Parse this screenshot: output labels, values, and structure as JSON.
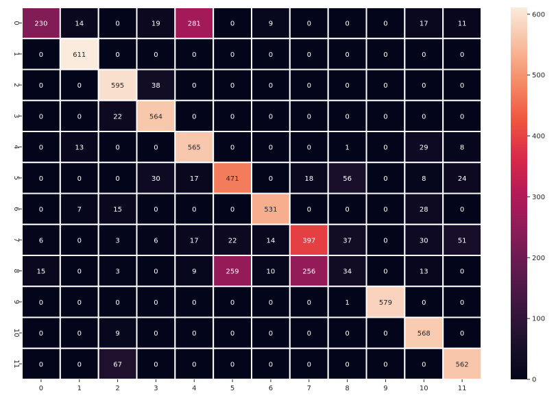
{
  "chart_data": {
    "type": "heatmap",
    "title": "",
    "xlabel": "",
    "ylabel": "",
    "x_categories": [
      "0",
      "1",
      "2",
      "3",
      "4",
      "5",
      "6",
      "7",
      "8",
      "9",
      "10",
      "11"
    ],
    "y_categories": [
      "0",
      "1",
      "2",
      "3",
      "4",
      "5",
      "6",
      "7",
      "8",
      "9",
      "10",
      "11"
    ],
    "matrix": [
      [
        230,
        14,
        0,
        19,
        281,
        0,
        9,
        0,
        0,
        0,
        17,
        11
      ],
      [
        0,
        611,
        0,
        0,
        0,
        0,
        0,
        0,
        0,
        0,
        0,
        0
      ],
      [
        0,
        0,
        595,
        38,
        0,
        0,
        0,
        0,
        0,
        0,
        0,
        0
      ],
      [
        0,
        0,
        22,
        564,
        0,
        0,
        0,
        0,
        0,
        0,
        0,
        0
      ],
      [
        0,
        13,
        0,
        0,
        565,
        0,
        0,
        0,
        1,
        0,
        29,
        8
      ],
      [
        0,
        0,
        0,
        30,
        17,
        471,
        0,
        18,
        56,
        0,
        8,
        24
      ],
      [
        0,
        7,
        15,
        0,
        0,
        0,
        531,
        0,
        0,
        0,
        28,
        0
      ],
      [
        6,
        0,
        3,
        6,
        17,
        22,
        14,
        397,
        37,
        0,
        30,
        51
      ],
      [
        15,
        0,
        3,
        0,
        9,
        259,
        10,
        256,
        34,
        0,
        13,
        0
      ],
      [
        0,
        0,
        0,
        0,
        0,
        0,
        0,
        0,
        1,
        579,
        0,
        0
      ],
      [
        0,
        0,
        9,
        0,
        0,
        0,
        0,
        0,
        0,
        0,
        568,
        0
      ],
      [
        0,
        0,
        67,
        0,
        0,
        0,
        0,
        0,
        0,
        0,
        0,
        562
      ]
    ],
    "colormap": "rocket",
    "vmin": 0,
    "vmax": 611,
    "colorbar_ticks": [
      0,
      100,
      200,
      300,
      400,
      500,
      600
    ],
    "cell_separator_color": "#ffffff",
    "annotation_light_color": "#ffffff",
    "annotation_dark_color": "#262626",
    "tick_label_color": "#262626",
    "grid": false,
    "legend": "colorbar-right"
  }
}
